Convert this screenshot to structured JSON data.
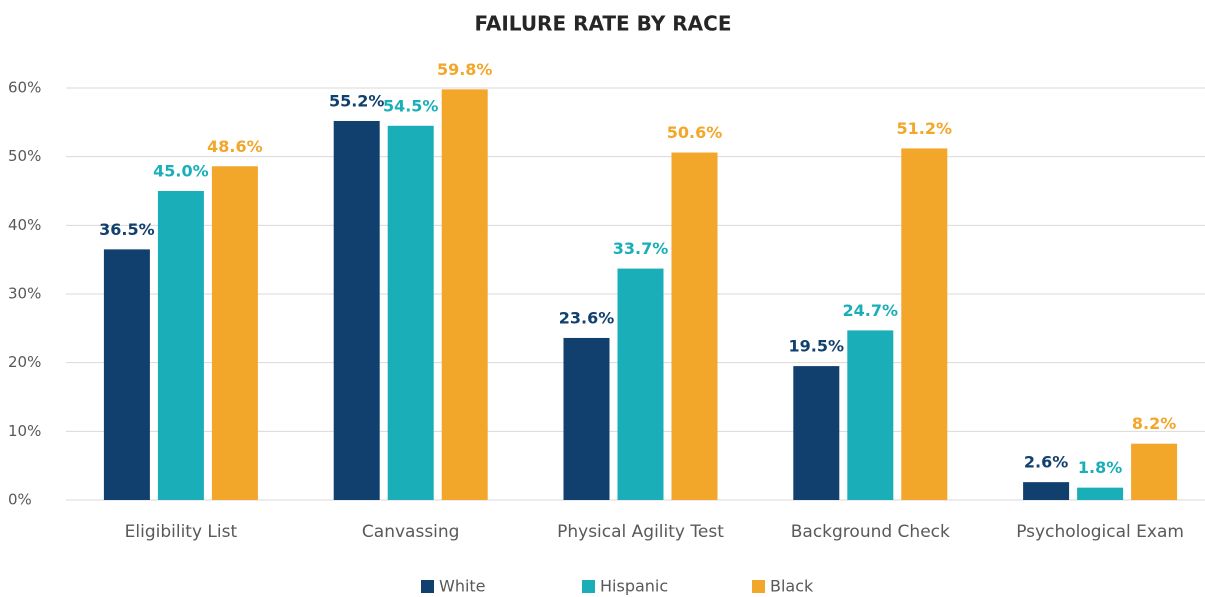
{
  "chart_data": {
    "type": "bar",
    "title": "FAILURE RATE BY RACE",
    "categories": [
      "Eligibility List",
      "Canvassing",
      "Physical Agility Test",
      "Background Check",
      "Psychological Exam"
    ],
    "series": [
      {
        "name": "White",
        "color": "#12406e",
        "values": [
          36.5,
          55.2,
          23.6,
          19.5,
          2.6
        ],
        "value_labels": [
          "36.5%",
          "55.2%",
          "23.6%",
          "19.5%",
          "2.6%"
        ]
      },
      {
        "name": "Hispanic",
        "color": "#1aafb8",
        "values": [
          45.0,
          54.5,
          33.7,
          24.7,
          1.8
        ],
        "value_labels": [
          "45.0%",
          "54.5%",
          "33.7%",
          "24.7%",
          "1.8%"
        ]
      },
      {
        "name": "Black",
        "color": "#f2a62a",
        "values": [
          48.6,
          59.8,
          50.6,
          51.2,
          8.2
        ],
        "value_labels": [
          "48.6%",
          "59.8%",
          "50.6%",
          "51.2%",
          "8.2%"
        ]
      }
    ],
    "ylim": [
      0,
      60
    ],
    "yticks": [
      {
        "value": 0,
        "label": "0%"
      },
      {
        "value": 10,
        "label": "10%"
      },
      {
        "value": 20,
        "label": "20%"
      },
      {
        "value": 30,
        "label": "30%"
      },
      {
        "value": 40,
        "label": "40%"
      },
      {
        "value": 50,
        "label": "50%"
      },
      {
        "value": 60,
        "label": "60%"
      }
    ],
    "grid": true,
    "legend": "bottom"
  }
}
